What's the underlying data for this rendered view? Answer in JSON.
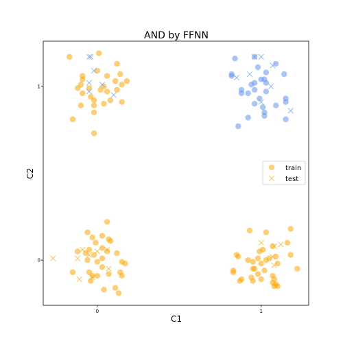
{
  "chart_data": {
    "type": "scatter",
    "title": "AND by FFNN",
    "xlabel": "C1",
    "ylabel": "C2",
    "xlim": [
      -0.33,
      1.29
    ],
    "ylim": [
      -0.26,
      1.26
    ],
    "xticks": [
      {
        "value": 0,
        "label": "0"
      },
      {
        "value": 1,
        "label": "1"
      }
    ],
    "yticks": [
      {
        "value": 0,
        "label": "0"
      },
      {
        "value": 1,
        "label": "1"
      }
    ],
    "grid": false,
    "legend_position": "center-right",
    "colors": {
      "class0": "#ffa500",
      "class1": "#6495ed"
    },
    "legend": [
      {
        "label": "train",
        "marker": "circle",
        "color": "#ffa500"
      },
      {
        "label": "test",
        "marker": "x",
        "color": "#ffa500"
      }
    ],
    "series": [
      {
        "name": "train",
        "marker": "circle",
        "class": 0,
        "points": [
          [
            -0.17,
            1.17
          ],
          [
            0.01,
            1.19
          ],
          [
            0.12,
            1.13
          ],
          [
            -0.09,
            1.06
          ],
          [
            -0.09,
            1.04
          ],
          [
            0.0,
            1.09
          ],
          [
            0.06,
            1.06
          ],
          [
            0.14,
            1.07
          ],
          [
            0.18,
            1.03
          ],
          [
            -0.1,
            1.01
          ],
          [
            -0.05,
            0.99
          ],
          [
            0.02,
            0.98
          ],
          [
            0.06,
            0.97
          ],
          [
            0.11,
            1.03
          ],
          [
            0.15,
            1.01
          ],
          [
            -0.12,
            0.99
          ],
          [
            0.04,
            1.0
          ],
          [
            0.12,
            0.98
          ],
          [
            -0.09,
            0.96
          ],
          [
            -0.04,
            0.94
          ],
          [
            -0.02,
            0.92
          ],
          [
            0.04,
            0.9
          ],
          [
            0.15,
            0.91
          ],
          [
            -0.1,
            0.89
          ],
          [
            -0.02,
            0.89
          ],
          [
            0.08,
            0.92
          ],
          [
            -0.02,
            0.85
          ],
          [
            -0.15,
            0.81
          ],
          [
            -0.02,
            0.73
          ],
          [
            0.06,
            0.22
          ],
          [
            -0.06,
            0.16
          ],
          [
            -0.03,
            0.13
          ],
          [
            0.03,
            0.14
          ],
          [
            0.07,
            0.12
          ],
          [
            0.08,
            0.11
          ],
          [
            -0.01,
            0.1
          ],
          [
            -0.12,
            0.05
          ],
          [
            -0.07,
            0.04
          ],
          [
            -0.05,
            0.06
          ],
          [
            0.03,
            0.07
          ],
          [
            -0.02,
            0.03
          ],
          [
            0.06,
            0.05
          ],
          [
            0.12,
            0.04
          ],
          [
            0.03,
            0.01
          ],
          [
            0.15,
            -0.01
          ],
          [
            0.17,
            -0.02
          ],
          [
            -0.06,
            0.0
          ],
          [
            0.0,
            -0.01
          ],
          [
            0.03,
            -0.04
          ],
          [
            -0.15,
            -0.07
          ],
          [
            -0.05,
            -0.07
          ],
          [
            0.07,
            -0.08
          ],
          [
            0.14,
            -0.07
          ],
          [
            -0.03,
            -0.09
          ],
          [
            0.0,
            -0.09
          ],
          [
            0.15,
            -0.09
          ],
          [
            -0.04,
            -0.12
          ],
          [
            0.11,
            -0.16
          ],
          [
            0.04,
            -0.17
          ],
          [
            0.13,
            -0.19
          ],
          [
            0.93,
            0.17
          ],
          [
            1.03,
            0.16
          ],
          [
            1.18,
            0.18
          ],
          [
            1.16,
            0.1
          ],
          [
            0.99,
            0.05
          ],
          [
            1.01,
            0.06
          ],
          [
            1.07,
            0.08
          ],
          [
            1.03,
            0.0
          ],
          [
            0.85,
            0.03
          ],
          [
            0.86,
            0.02
          ],
          [
            0.92,
            0.0
          ],
          [
            0.95,
            -0.01
          ],
          [
            0.98,
            0.01
          ],
          [
            1.05,
            0.01
          ],
          [
            1.09,
            0.02
          ],
          [
            1.18,
            0.03
          ],
          [
            1.0,
            -0.02
          ],
          [
            1.1,
            -0.02
          ],
          [
            0.95,
            -0.05
          ],
          [
            0.96,
            -0.05
          ],
          [
            1.02,
            -0.06
          ],
          [
            1.22,
            -0.05
          ],
          [
            0.83,
            -0.06
          ],
          [
            0.83,
            -0.07
          ],
          [
            0.98,
            -0.08
          ],
          [
            1.07,
            -0.09
          ],
          [
            0.94,
            -0.1
          ],
          [
            1.08,
            -0.11
          ],
          [
            0.88,
            -0.11
          ],
          [
            0.87,
            -0.12
          ],
          [
            0.95,
            -0.12
          ],
          [
            1.0,
            -0.11
          ],
          [
            1.07,
            -0.13
          ],
          [
            1.09,
            -0.14
          ],
          [
            1.08,
            -0.15
          ],
          [
            1.1,
            -0.15
          ]
        ]
      },
      {
        "name": "train",
        "marker": "circle",
        "class": 1,
        "points": [
          [
            0.84,
            1.16
          ],
          [
            0.96,
            1.17
          ],
          [
            1.09,
            1.13
          ],
          [
            0.98,
            1.11
          ],
          [
            1.03,
            1.08
          ],
          [
            0.82,
            1.07
          ],
          [
            0.82,
            1.06
          ],
          [
            1.14,
            1.07
          ],
          [
            0.96,
            1.02
          ],
          [
            1.0,
            1.04
          ],
          [
            1.02,
            1.04
          ],
          [
            1.03,
            1.02
          ],
          [
            0.94,
            1.01
          ],
          [
            0.96,
            0.98
          ],
          [
            0.88,
            0.98
          ],
          [
            0.88,
            0.96
          ],
          [
            0.92,
            0.96
          ],
          [
            1.03,
            0.97
          ],
          [
            1.15,
            0.93
          ],
          [
            1.15,
            0.91
          ],
          [
            0.99,
            0.93
          ],
          [
            0.96,
            0.9
          ],
          [
            1.09,
            0.89
          ],
          [
            1.01,
            0.88
          ],
          [
            1.02,
            0.85
          ],
          [
            1.02,
            0.83
          ],
          [
            1.15,
            0.81
          ],
          [
            0.92,
            0.82
          ],
          [
            0.86,
            0.77
          ]
        ]
      },
      {
        "name": "test",
        "marker": "x",
        "class": 0,
        "points": [
          [
            -0.27,
            0.01
          ],
          [
            -0.09,
            0.06
          ],
          [
            0.06,
            0.06
          ],
          [
            0.0,
            0.05
          ],
          [
            -0.05,
            0.03
          ],
          [
            -0.12,
            0.01
          ],
          [
            0.07,
            -0.05
          ],
          [
            -0.03,
            -0.1
          ],
          [
            -0.11,
            -0.11
          ],
          [
            1.0,
            0.1
          ],
          [
            1.08,
            0.08
          ],
          [
            1.12,
            0.09
          ],
          [
            1.07,
            0.02
          ],
          [
            1.08,
            -0.03
          ]
        ]
      },
      {
        "name": "test",
        "marker": "x",
        "class": 1,
        "points": [
          [
            -0.05,
            1.17
          ],
          [
            -0.04,
            1.17
          ],
          [
            -0.02,
            1.09
          ],
          [
            -0.05,
            1.02
          ],
          [
            -0.05,
            0.97
          ],
          [
            0.03,
            1.01
          ],
          [
            0.1,
            0.95
          ],
          [
            0.96,
            1.17
          ],
          [
            1.0,
            1.17
          ],
          [
            1.07,
            1.12
          ],
          [
            0.93,
            1.07
          ],
          [
            0.85,
            1.05
          ],
          [
            1.06,
            1.0
          ],
          [
            1.0,
            0.91
          ],
          [
            1.18,
            0.86
          ]
        ]
      }
    ]
  }
}
